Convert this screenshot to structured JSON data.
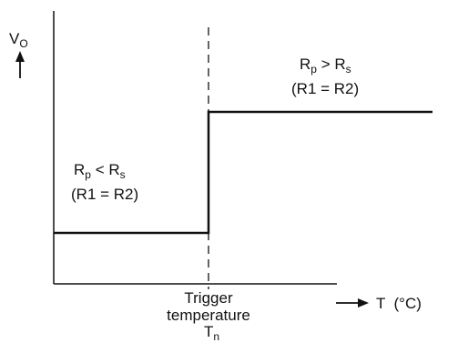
{
  "y_axis": {
    "symbol": "V",
    "subscript": "O"
  },
  "x_axis": {
    "label": "T  (°C)"
  },
  "trigger": {
    "line1": "Trigger",
    "line2": "temperature",
    "symbol": "T",
    "subscript": "n"
  },
  "low_region": {
    "r1": "R",
    "r1_sub": "p",
    "relation": " < ",
    "r2": "R",
    "r2_sub": "s",
    "note": "(R1 = R2)"
  },
  "high_region": {
    "r1": "R",
    "r1_sub": "p",
    "relation": " > ",
    "r2": "R",
    "r2_sub": "s",
    "note": "(R1 = R2)"
  },
  "colors": {
    "line": "#111111",
    "background": "#ffffff"
  }
}
